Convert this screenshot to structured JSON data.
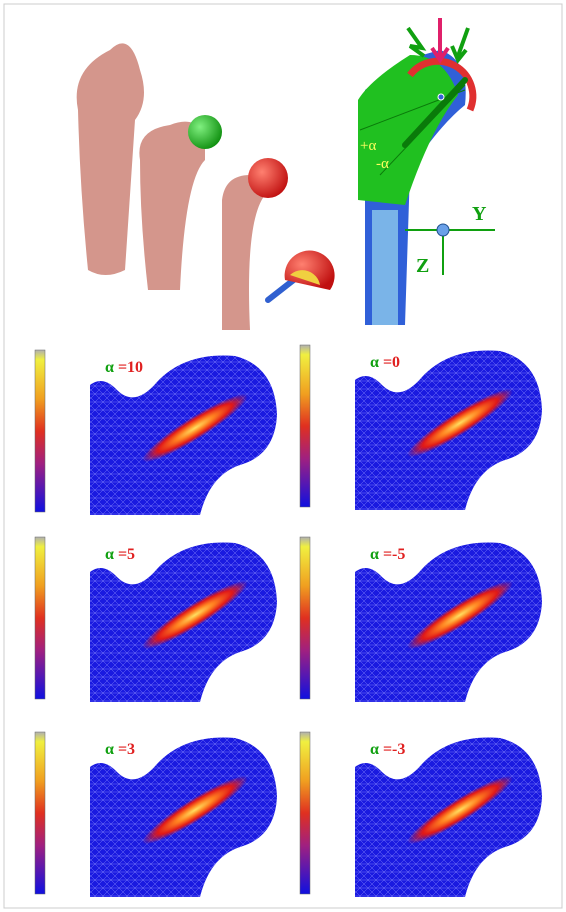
{
  "top": {
    "alpha_plus": "+α",
    "alpha_minus": "-α",
    "axis_y": "Y",
    "axis_z": "Z"
  },
  "panels": [
    {
      "symbol": "α",
      "value": "=10"
    },
    {
      "symbol": "α",
      "value": "=0"
    },
    {
      "symbol": "α",
      "value": "=5"
    },
    {
      "symbol": "α",
      "value": "=-5"
    },
    {
      "symbol": "α",
      "value": "=3"
    },
    {
      "symbol": "α",
      "value": "=-3"
    }
  ]
}
